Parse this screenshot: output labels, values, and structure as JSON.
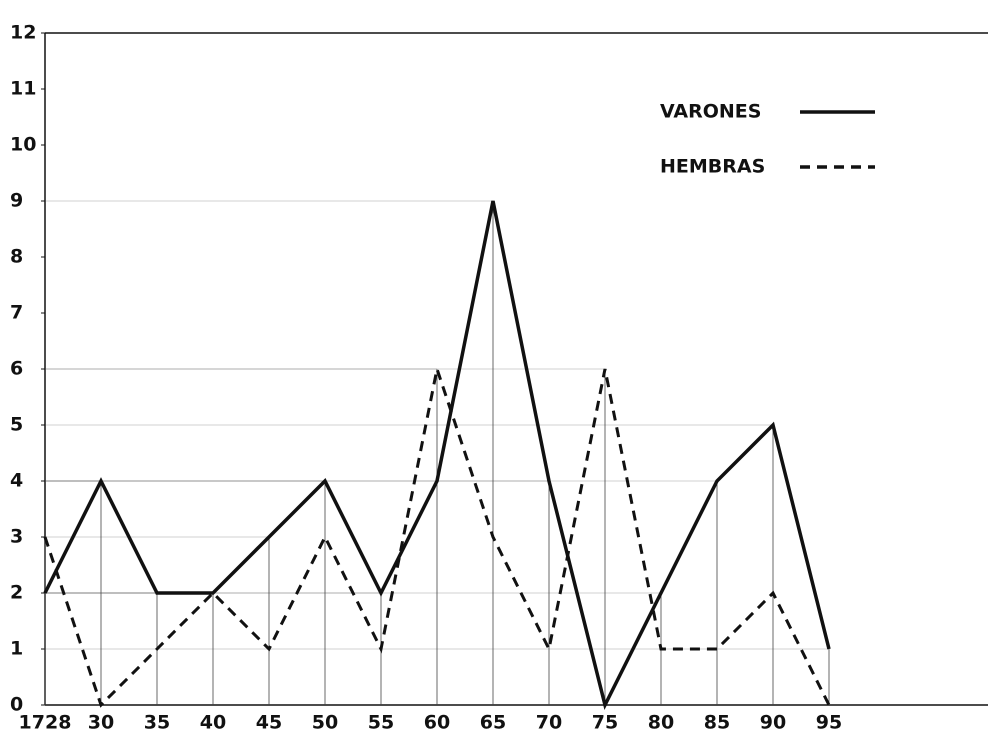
{
  "chart_data": {
    "type": "line",
    "categories": [
      "1728",
      "30",
      "35",
      "40",
      "45",
      "50",
      "55",
      "60",
      "65",
      "70",
      "75",
      "80",
      "85",
      "90",
      "95"
    ],
    "series": [
      {
        "name": "VARONES",
        "color": "#111111",
        "dash": false,
        "values": [
          2,
          4,
          2,
          2,
          3,
          4,
          2,
          4,
          9,
          4,
          0,
          2,
          4,
          5,
          1
        ]
      },
      {
        "name": "HEMBRAS",
        "color": "#111111",
        "dash": true,
        "values": [
          3,
          0,
          1,
          2,
          1,
          3,
          1,
          6,
          3,
          1,
          6,
          1,
          1,
          2,
          0
        ]
      }
    ],
    "ylim": [
      0,
      12
    ],
    "yticks": [
      0,
      1,
      2,
      3,
      4,
      5,
      6,
      7,
      8,
      9,
      10,
      11,
      12
    ]
  }
}
